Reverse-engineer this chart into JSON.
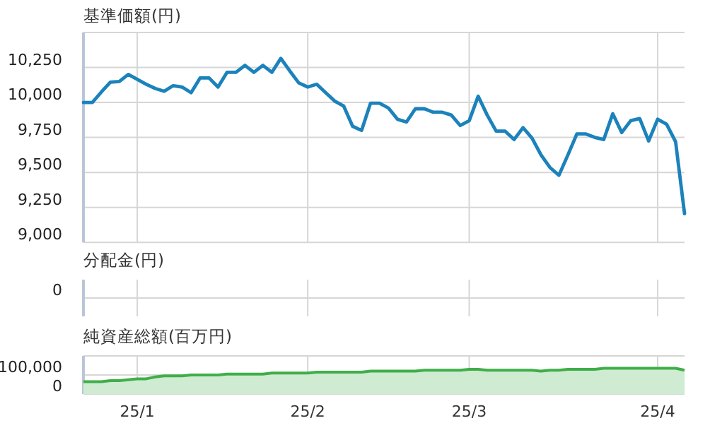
{
  "chart_data": [
    {
      "type": "line",
      "title": "基準価額(円)",
      "grid": true,
      "tick_labels": "y",
      "categories": [
        null,
        null,
        null,
        null,
        null,
        null,
        null,
        null,
        null,
        null,
        null,
        null,
        null,
        null,
        null,
        null,
        null,
        null,
        null,
        null,
        null,
        null,
        null,
        null,
        null,
        null,
        null,
        null,
        null,
        null,
        null,
        null,
        null,
        null,
        null,
        null,
        null,
        null,
        null,
        null,
        null,
        null,
        null,
        null,
        null,
        null,
        null,
        null,
        null,
        null,
        null,
        null,
        null,
        null,
        null,
        null,
        null,
        null,
        null,
        null,
        null,
        null,
        null,
        null,
        null,
        null,
        null,
        null
      ],
      "ylim": [
        9000,
        10500
      ],
      "yticks": [
        {
          "value": 9000,
          "label": "9,000"
        },
        {
          "value": 9250,
          "label": "9,250"
        },
        {
          "value": 9500,
          "label": "9,500"
        },
        {
          "value": 9750,
          "label": "9,750"
        },
        {
          "value": 10000,
          "label": "10,000"
        },
        {
          "value": 10250,
          "label": "10,250"
        },
        {
          "value": 10500,
          "label": null
        }
      ],
      "series": [
        {
          "color": "#1b82bb",
          "values": [
            10000,
            10000,
            10075,
            10145,
            10150,
            10200,
            10165,
            10130,
            10100,
            10080,
            10120,
            10110,
            10070,
            10175,
            10175,
            10110,
            10215,
            10215,
            10265,
            10215,
            10265,
            10215,
            10315,
            10225,
            10140,
            10110,
            10130,
            10070,
            10010,
            9975,
            9830,
            9800,
            9995,
            9995,
            9960,
            9880,
            9860,
            9955,
            9955,
            9930,
            9930,
            9910,
            9835,
            9870,
            10045,
            9910,
            9795,
            9795,
            9735,
            9820,
            9745,
            9625,
            9535,
            9480,
            9625,
            9775,
            9775,
            9750,
            9735,
            9920,
            9785,
            9870,
            9885,
            9725,
            9880,
            9845,
            9720,
            9205
          ]
        }
      ]
    },
    {
      "type": "other",
      "title": "分配金(円)",
      "annotations": [
        "0"
      ]
    },
    {
      "type": "area",
      "title": "純資産総額(百万円)",
      "grid": true,
      "categories": [
        null,
        null,
        null,
        null,
        null,
        null,
        "25/1",
        null,
        null,
        null,
        null,
        null,
        null,
        null,
        null,
        null,
        null,
        null,
        null,
        null,
        null,
        null,
        null,
        null,
        null,
        "25/2",
        null,
        null,
        null,
        null,
        null,
        null,
        null,
        null,
        null,
        null,
        null,
        null,
        null,
        null,
        null,
        null,
        null,
        "25/3",
        null,
        null,
        null,
        null,
        null,
        null,
        null,
        null,
        null,
        null,
        null,
        null,
        null,
        null,
        null,
        null,
        null,
        null,
        null,
        null,
        "25/4",
        null,
        null,
        null
      ],
      "ylim": [
        0,
        200000
      ],
      "yticks": [
        0,
        {
          "value": 100000,
          "label": "100,000"
        },
        {
          "value": 200000,
          "label": null
        }
      ],
      "series": [
        {
          "color": "#3fae49",
          "values": [
            65000,
            65000,
            65000,
            70000,
            70000,
            75000,
            80000,
            80000,
            90000,
            95000,
            95000,
            95000,
            100000,
            100000,
            100000,
            100000,
            105000,
            105000,
            105000,
            105000,
            105000,
            110000,
            110000,
            110000,
            110000,
            110000,
            115000,
            115000,
            115000,
            115000,
            115000,
            115000,
            120000,
            120000,
            120000,
            120000,
            120000,
            120000,
            125000,
            125000,
            125000,
            125000,
            125000,
            130000,
            130000,
            125000,
            125000,
            125000,
            125000,
            125000,
            125000,
            120000,
            125000,
            125000,
            130000,
            130000,
            130000,
            130000,
            135000,
            135000,
            135000,
            135000,
            135000,
            135000,
            135000,
            135000,
            135000,
            125000
          ]
        }
      ]
    }
  ]
}
